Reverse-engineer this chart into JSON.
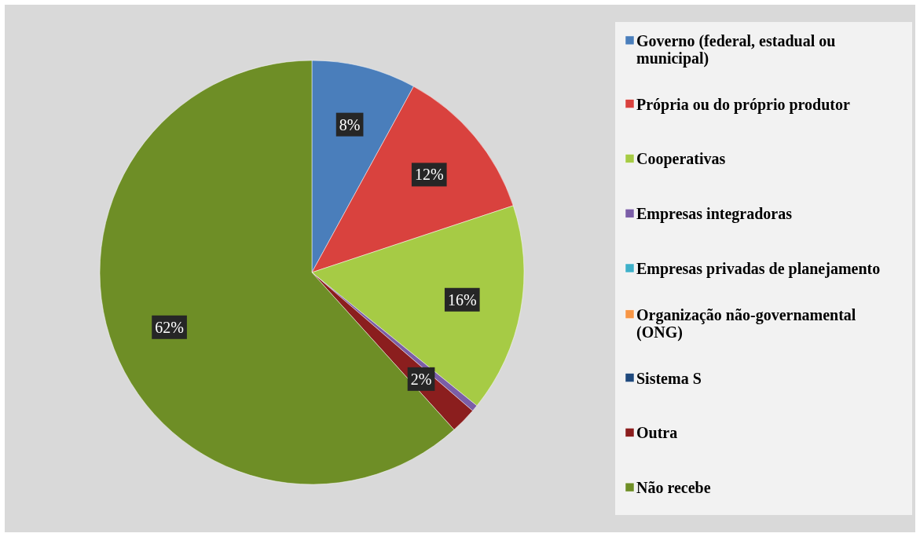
{
  "chart_data": {
    "type": "pie",
    "categories": [
      "Governo (federal, estadual ou municipal)",
      "Própria ou do próprio produtor",
      "Cooperativas",
      "Empresas integradoras",
      "Empresas privadas de planejamento",
      "Organização não-governamental (ONG)",
      "Sistema S",
      "Outra",
      "Não recebe"
    ],
    "values": [
      8,
      12,
      16,
      0.5,
      0,
      0,
      0,
      2,
      62
    ],
    "value_labels": [
      "8%",
      "12%",
      "16%",
      null,
      null,
      null,
      null,
      "2%",
      "62%"
    ],
    "colors": [
      "#4a7ebb",
      "#d9423e",
      "#a6cb45",
      "#7b5ea7",
      "#3fb0c9",
      "#f79646",
      "#1f497d",
      "#8b1e1e",
      "#6e8e26"
    ],
    "legend": "right"
  }
}
